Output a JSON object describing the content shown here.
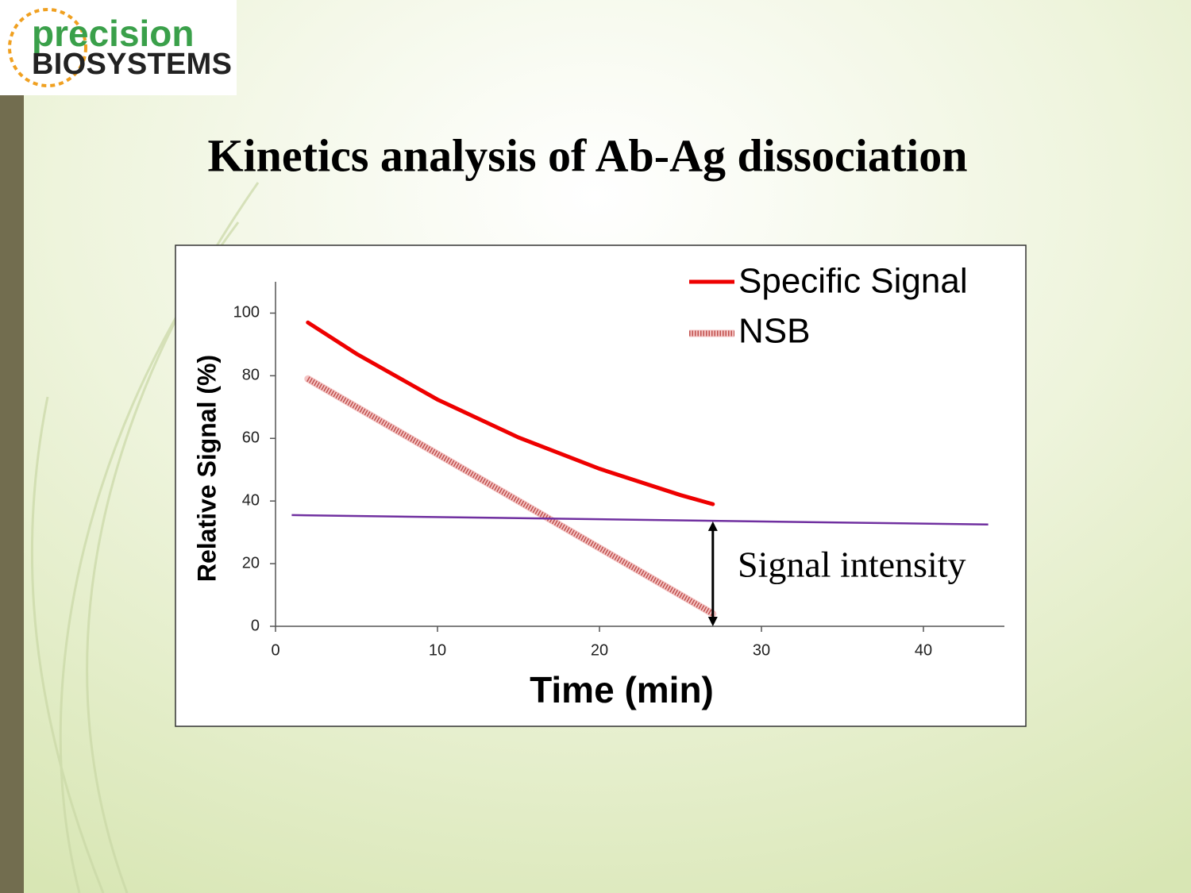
{
  "logo": {
    "line1": "precision",
    "line2": "BIOSYSTEMS"
  },
  "chart_data": {
    "type": "line",
    "title": "Kinetics analysis of Ab-Ag dissociation",
    "xlabel": "Time (min)",
    "ylabel": "Relative Signal (%)",
    "x": [
      2,
      5,
      10,
      15,
      20,
      25,
      27
    ],
    "series": [
      {
        "name": "Specific Signal",
        "color": "#ee0000",
        "style": "solid",
        "values": [
          97,
          87,
          72.4,
          60.3,
          50.3,
          41.9,
          39
        ]
      },
      {
        "name": "NSB",
        "color": "#c0504d",
        "style": "hatched",
        "values": [
          79,
          70,
          55,
          40,
          25,
          10,
          4
        ]
      }
    ],
    "reference_line": {
      "x": [
        1,
        44
      ],
      "values": [
        35.5,
        32.5
      ],
      "color": "#7030a0"
    },
    "arrow": {
      "x": 27,
      "values": [
        0,
        33.5
      ],
      "label": "Signal intensity"
    },
    "xlim": [
      0,
      45
    ],
    "ylim": [
      0,
      110
    ],
    "xticks": [
      0,
      10,
      20,
      30,
      40
    ],
    "yticks": [
      0,
      20,
      40,
      60,
      80,
      100
    ],
    "grid": false,
    "legend": "upper right"
  }
}
